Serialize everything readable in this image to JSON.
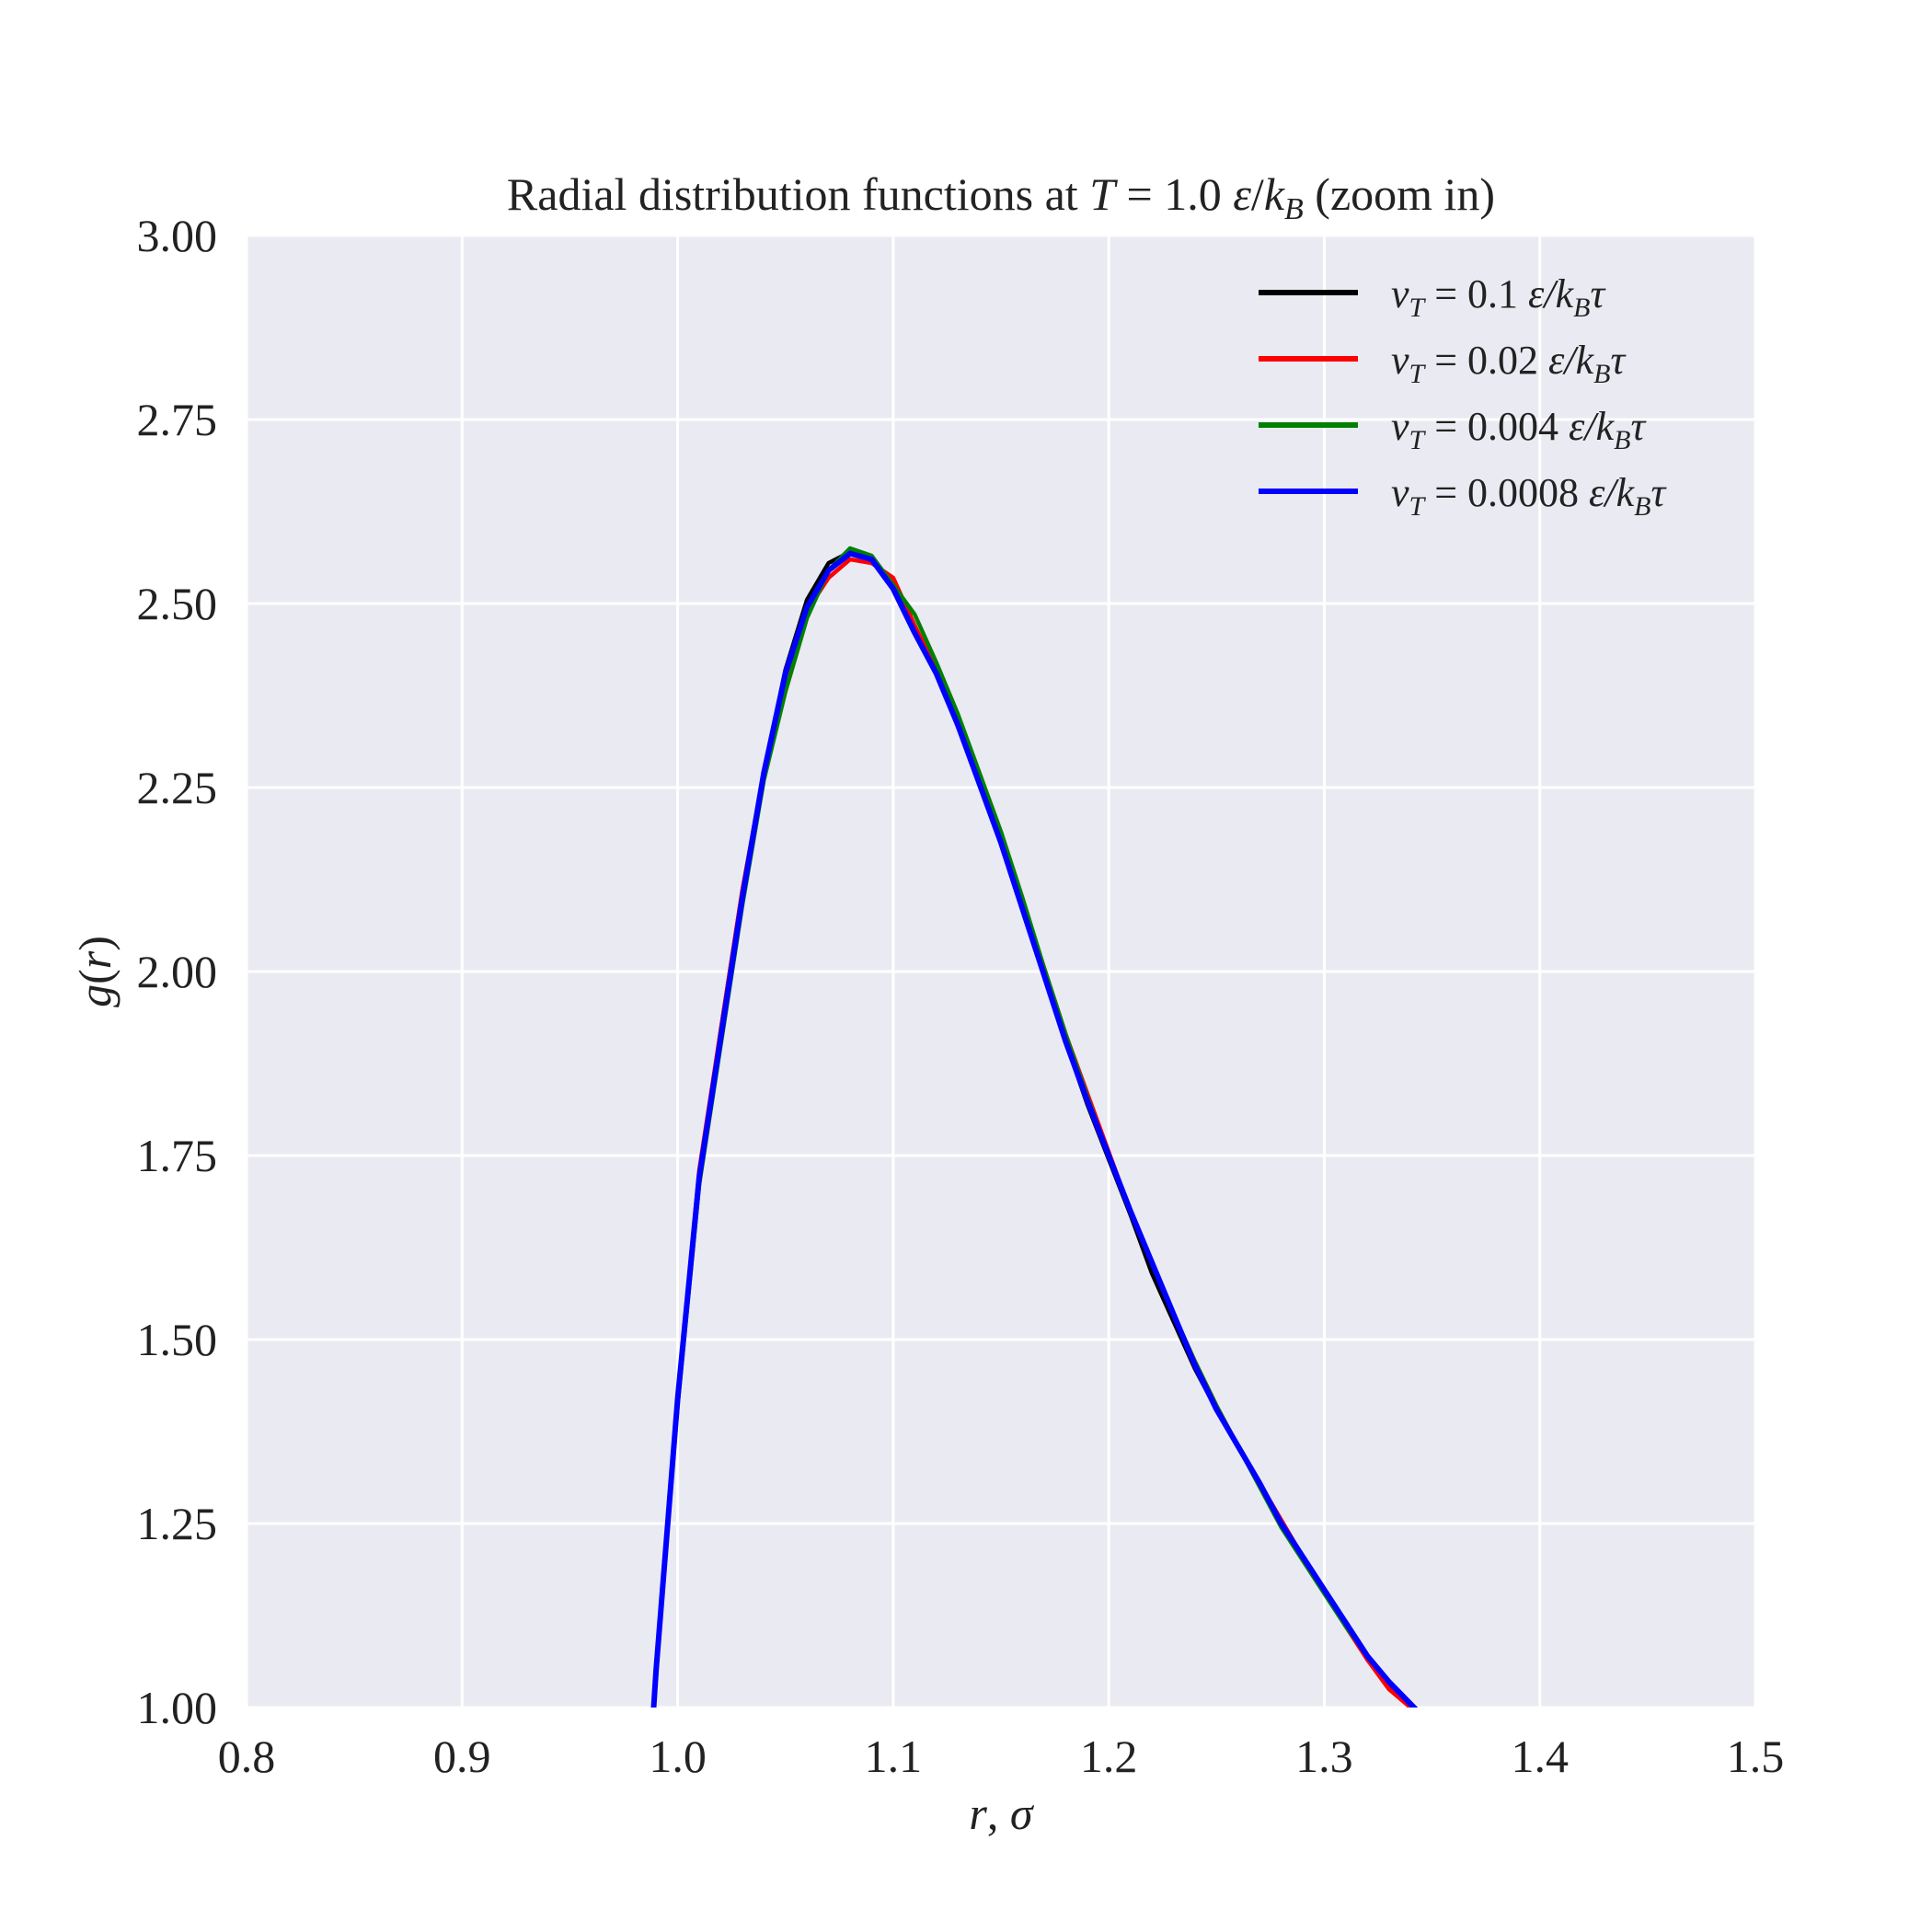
{
  "chart_data": {
    "type": "line",
    "title": {
      "prefix": "Radial distribution functions at ",
      "var": "T",
      "equals": " = ",
      "value": "1.0 ",
      "unit_eps": "ε",
      "unit_slash": "/",
      "unit_k": "k",
      "unit_sub": "B",
      "suffix": " (zoom in)"
    },
    "xlabel": {
      "var": "r",
      "sep": ", ",
      "unit": "σ"
    },
    "ylabel": {
      "var": "g",
      "open": "(",
      "arg": "r",
      "close": ")"
    },
    "xlim": [
      0.8,
      1.5
    ],
    "ylim": [
      1.0,
      3.0
    ],
    "xticks": [
      "0.8",
      "0.9",
      "1.0",
      "1.1",
      "1.2",
      "1.3",
      "1.4",
      "1.5"
    ],
    "yticks": [
      "1.00",
      "1.25",
      "1.50",
      "1.75",
      "2.00",
      "2.25",
      "2.50",
      "2.75",
      "3.00"
    ],
    "grid": true,
    "legend_position": "top-right",
    "legend_template": {
      "var": "v",
      "sub": "T",
      "eq": " = ",
      "unit": "ε/k",
      "unit_sub": "B",
      "unit_tail": "τ"
    },
    "series": [
      {
        "name": "0.1",
        "color": "#000000",
        "x": [
          0.98,
          0.99,
          1.0,
          1.01,
          1.02,
          1.03,
          1.04,
          1.05,
          1.06,
          1.07,
          1.08,
          1.09,
          1.1,
          1.11,
          1.12,
          1.13,
          1.14,
          1.15,
          1.16,
          1.17,
          1.18,
          1.19,
          1.2,
          1.21,
          1.22,
          1.23,
          1.24,
          1.25,
          1.26,
          1.27,
          1.28,
          1.29,
          1.3,
          1.31,
          1.32,
          1.33,
          1.34,
          1.35
        ],
        "y": [
          0.6,
          1.05,
          1.42,
          1.72,
          1.92,
          2.11,
          2.27,
          2.41,
          2.505,
          2.555,
          2.57,
          2.56,
          2.52,
          2.46,
          2.41,
          2.34,
          2.26,
          2.18,
          2.09,
          1.995,
          1.905,
          1.82,
          1.745,
          1.67,
          1.59,
          1.525,
          1.46,
          1.405,
          1.355,
          1.305,
          1.25,
          1.205,
          1.16,
          1.115,
          1.065,
          1.03,
          1.005,
          0.97
        ]
      },
      {
        "name": "0.02",
        "color": "#ff0000",
        "x": [
          0.98,
          0.99,
          1.0,
          1.01,
          1.02,
          1.03,
          1.04,
          1.05,
          1.06,
          1.07,
          1.08,
          1.09,
          1.1,
          1.11,
          1.12,
          1.13,
          1.14,
          1.15,
          1.16,
          1.17,
          1.18,
          1.19,
          1.2,
          1.21,
          1.22,
          1.23,
          1.24,
          1.25,
          1.26,
          1.27,
          1.28,
          1.29,
          1.3,
          1.31,
          1.32,
          1.33,
          1.34,
          1.35
        ],
        "y": [
          0.6,
          1.05,
          1.42,
          1.73,
          1.92,
          2.11,
          2.27,
          2.4,
          2.49,
          2.535,
          2.56,
          2.555,
          2.535,
          2.47,
          2.41,
          2.345,
          2.265,
          2.185,
          2.095,
          2.005,
          1.915,
          1.835,
          1.755,
          1.675,
          1.605,
          1.535,
          1.47,
          1.41,
          1.355,
          1.305,
          1.255,
          1.205,
          1.16,
          1.11,
          1.065,
          1.025,
          1.0,
          0.97
        ]
      },
      {
        "name": "0.004",
        "color": "#008000",
        "x": [
          0.98,
          0.99,
          1.0,
          1.01,
          1.02,
          1.03,
          1.04,
          1.05,
          1.06,
          1.07,
          1.08,
          1.09,
          1.1,
          1.11,
          1.12,
          1.13,
          1.14,
          1.15,
          1.16,
          1.17,
          1.18,
          1.19,
          1.2,
          1.21,
          1.22,
          1.23,
          1.24,
          1.25,
          1.26,
          1.27,
          1.28,
          1.29,
          1.3,
          1.31,
          1.32,
          1.33,
          1.34,
          1.35
        ],
        "y": [
          0.6,
          1.05,
          1.41,
          1.71,
          1.9,
          2.09,
          2.26,
          2.38,
          2.48,
          2.545,
          2.575,
          2.565,
          2.525,
          2.485,
          2.42,
          2.35,
          2.27,
          2.19,
          2.1,
          2.005,
          1.915,
          1.83,
          1.75,
          1.675,
          1.605,
          1.535,
          1.47,
          1.41,
          1.355,
          1.3,
          1.245,
          1.2,
          1.155,
          1.11,
          1.07,
          1.035,
          1.005,
          0.975
        ]
      },
      {
        "name": "0.0008",
        "color": "#0000ff",
        "x": [
          0.98,
          0.99,
          1.0,
          1.01,
          1.02,
          1.03,
          1.04,
          1.05,
          1.06,
          1.07,
          1.08,
          1.09,
          1.1,
          1.11,
          1.12,
          1.13,
          1.14,
          1.15,
          1.16,
          1.17,
          1.18,
          1.19,
          1.2,
          1.21,
          1.22,
          1.23,
          1.24,
          1.25,
          1.26,
          1.27,
          1.28,
          1.29,
          1.3,
          1.31,
          1.32,
          1.33,
          1.34,
          1.35
        ],
        "y": [
          0.6,
          1.05,
          1.42,
          1.72,
          1.91,
          2.1,
          2.27,
          2.405,
          2.495,
          2.545,
          2.568,
          2.56,
          2.52,
          2.46,
          2.405,
          2.335,
          2.255,
          2.175,
          2.085,
          1.995,
          1.905,
          1.825,
          1.75,
          1.675,
          1.605,
          1.535,
          1.465,
          1.405,
          1.355,
          1.305,
          1.25,
          1.205,
          1.16,
          1.115,
          1.07,
          1.035,
          1.005,
          0.975
        ]
      }
    ]
  }
}
